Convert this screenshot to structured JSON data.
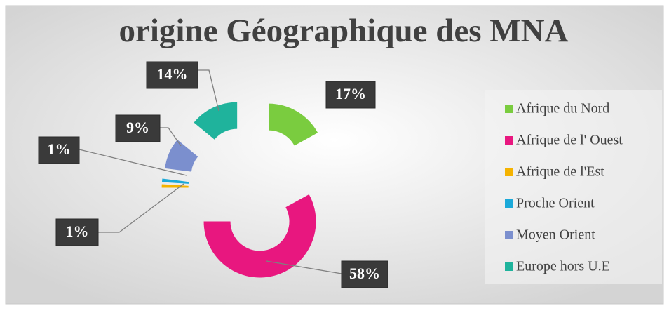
{
  "chart_data": {
    "type": "doughnut",
    "title": "origine Géographique des MNA",
    "categories": [
      "Afrique du Nord",
      "Afrique de l' Ouest",
      "Afrique de l'Est",
      "Proche Orient",
      "Moyen Orient",
      "Europe hors U.E"
    ],
    "values": [
      17,
      58,
      1,
      1,
      9,
      14
    ],
    "value_labels": [
      "17%",
      "58%",
      "1%",
      "1%",
      "9%",
      "14%"
    ],
    "colors": [
      "#7acc3f",
      "#e8177f",
      "#f5b300",
      "#1ba9d9",
      "#7b8fce",
      "#1fb39c"
    ],
    "legend": "right"
  }
}
